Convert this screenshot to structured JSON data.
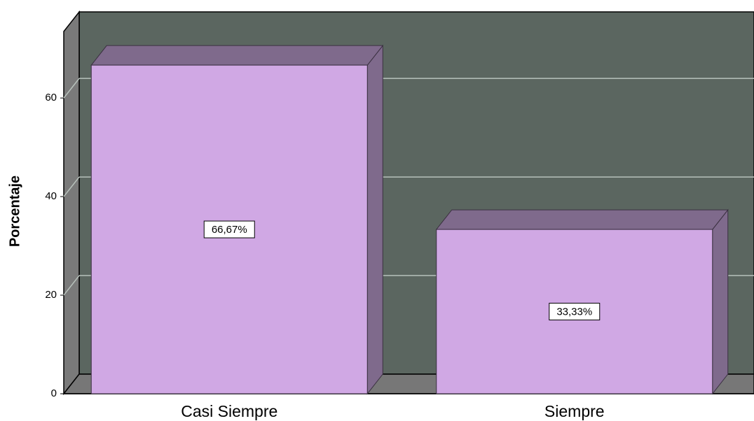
{
  "chart_data": {
    "type": "bar3d",
    "y_label": "Porcentaje",
    "categories": [
      "Casi Siempre",
      "Siempre"
    ],
    "values": [
      66.67,
      33.33
    ],
    "value_labels": [
      "66,67%",
      "33,33%"
    ],
    "color": "#d0a8e4",
    "ylim": [
      0,
      73.5
    ],
    "yticks": [
      0,
      20,
      40,
      60
    ],
    "grid": true
  }
}
